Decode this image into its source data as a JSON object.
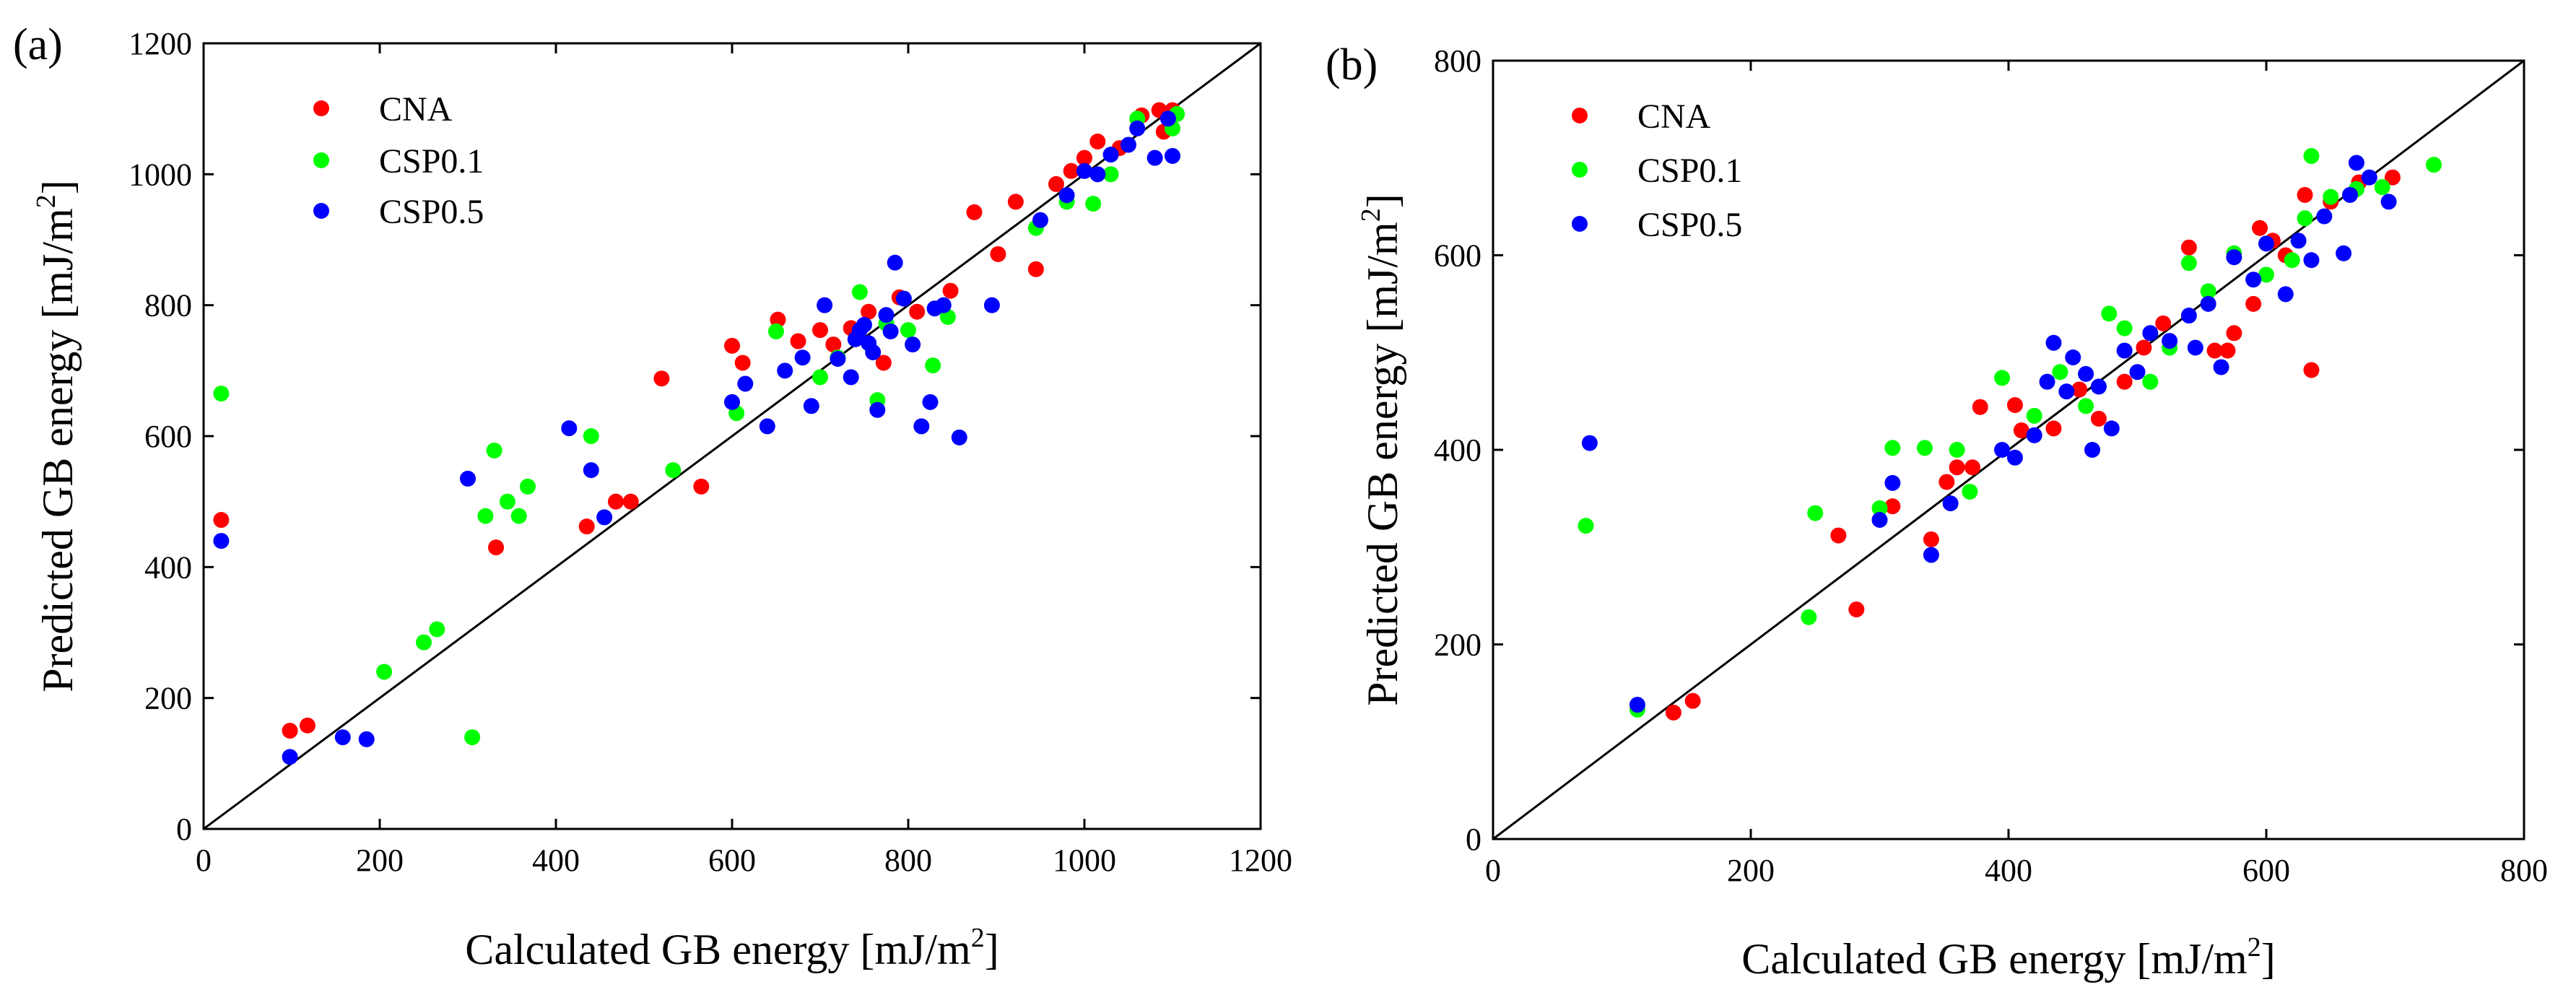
{
  "figure": {
    "panels": [
      {
        "letter": "(a)"
      },
      {
        "letter": "(b)"
      }
    ]
  },
  "colors": {
    "CNA": "#ff0000",
    "CSP0.1": "#00ff00",
    "CSP0.5": "#0000ff",
    "axis": "#000000"
  },
  "chart_data": [
    {
      "type": "scatter",
      "panel": "(a)",
      "xlabel_main": "Calculated GB energy [mJ/m",
      "xlabel_sup": "2",
      "xlabel_end": "]",
      "ylabel_main": "Predicted GB energy [mJ/m",
      "ylabel_sup": "2",
      "ylabel_end": "]",
      "xlim": [
        0,
        1200
      ],
      "ylim": [
        0,
        1200
      ],
      "xticks": [
        0,
        200,
        400,
        600,
        800,
        1000,
        1200
      ],
      "yticks": [
        0,
        200,
        400,
        600,
        800,
        1000,
        1200
      ],
      "xtick_labels": [
        "0",
        "200",
        "400",
        "600",
        "800",
        "1000",
        "1200"
      ],
      "ytick_labels": [
        "0",
        "200",
        "400",
        "600",
        "800",
        "1000",
        "1200"
      ],
      "reference_line": "y = x",
      "legend": [
        "CNA",
        "CSP0.1",
        "CSP0.5"
      ],
      "series": [
        {
          "name": "CNA",
          "points": [
            [
              20,
              472
            ],
            [
              98,
              150
            ],
            [
              118,
              158
            ],
            [
              332,
              430
            ],
            [
              435,
              462
            ],
            [
              468,
              500
            ],
            [
              485,
              500
            ],
            [
              520,
              688
            ],
            [
              565,
              523
            ],
            [
              600,
              738
            ],
            [
              612,
              712
            ],
            [
              652,
              778
            ],
            [
              675,
              745
            ],
            [
              700,
              762
            ],
            [
              715,
              740
            ],
            [
              735,
              765
            ],
            [
              755,
              790
            ],
            [
              772,
              712
            ],
            [
              790,
              812
            ],
            [
              810,
              790
            ],
            [
              848,
              822
            ],
            [
              875,
              942
            ],
            [
              902,
              878
            ],
            [
              922,
              958
            ],
            [
              945,
              855
            ],
            [
              968,
              985
            ],
            [
              985,
              1005
            ],
            [
              1000,
              1025
            ],
            [
              1015,
              1050
            ],
            [
              1040,
              1040
            ],
            [
              1065,
              1090
            ],
            [
              1085,
              1098
            ],
            [
              1100,
              1098
            ],
            [
              1090,
              1065
            ]
          ]
        },
        {
          "name": "CSP0.1",
          "points": [
            [
              20,
              665
            ],
            [
              205,
              240
            ],
            [
              250,
              285
            ],
            [
              265,
              305
            ],
            [
              305,
              140
            ],
            [
              320,
              478
            ],
            [
              330,
              578
            ],
            [
              345,
              500
            ],
            [
              358,
              478
            ],
            [
              368,
              523
            ],
            [
              440,
              600
            ],
            [
              533,
              548
            ],
            [
              605,
              635
            ],
            [
              650,
              760
            ],
            [
              700,
              690
            ],
            [
              720,
              720
            ],
            [
              745,
              820
            ],
            [
              765,
              655
            ],
            [
              775,
              772
            ],
            [
              800,
              762
            ],
            [
              828,
              708
            ],
            [
              845,
              782
            ],
            [
              945,
              918
            ],
            [
              980,
              958
            ],
            [
              1010,
              955
            ],
            [
              1030,
              1000
            ],
            [
              1060,
              1085
            ],
            [
              1100,
              1070
            ],
            [
              1105,
              1092
            ]
          ]
        },
        {
          "name": "CSP0.5",
          "points": [
            [
              20,
              440
            ],
            [
              98,
              110
            ],
            [
              158,
              140
            ],
            [
              185,
              137
            ],
            [
              300,
              535
            ],
            [
              415,
              612
            ],
            [
              440,
              548
            ],
            [
              455,
              476
            ],
            [
              600,
              652
            ],
            [
              615,
              680
            ],
            [
              640,
              615
            ],
            [
              660,
              700
            ],
            [
              680,
              720
            ],
            [
              690,
              646
            ],
            [
              705,
              800
            ],
            [
              720,
              718
            ],
            [
              735,
              690
            ],
            [
              740,
              748
            ],
            [
              745,
              762
            ],
            [
              750,
              770
            ],
            [
              755,
              742
            ],
            [
              760,
              728
            ],
            [
              765,
              640
            ],
            [
              775,
              785
            ],
            [
              780,
              760
            ],
            [
              785,
              865
            ],
            [
              795,
              810
            ],
            [
              805,
              740
            ],
            [
              815,
              615
            ],
            [
              825,
              652
            ],
            [
              830,
              795
            ],
            [
              840,
              800
            ],
            [
              858,
              598
            ],
            [
              895,
              800
            ],
            [
              950,
              930
            ],
            [
              980,
              968
            ],
            [
              1000,
              1005
            ],
            [
              1015,
              1000
            ],
            [
              1030,
              1030
            ],
            [
              1050,
              1045
            ],
            [
              1060,
              1070
            ],
            [
              1080,
              1025
            ],
            [
              1095,
              1085
            ],
            [
              1100,
              1028
            ]
          ]
        }
      ]
    },
    {
      "type": "scatter",
      "panel": "(b)",
      "xlabel_main": "Calculated GB energy [mJ/m",
      "xlabel_sup": "2",
      "xlabel_end": "]",
      "ylabel_main": "Predicted GB energy [mJ/m",
      "ylabel_sup": "2",
      "ylabel_end": "]",
      "xlim": [
        0,
        800
      ],
      "ylim": [
        0,
        800
      ],
      "xticks": [
        0,
        200,
        400,
        600,
        800
      ],
      "yticks": [
        0,
        200,
        400,
        600,
        800
      ],
      "xtick_labels": [
        "0",
        "200",
        "400",
        "600",
        "800"
      ],
      "ytick_labels": [
        "0",
        "200",
        "400",
        "600",
        "800"
      ],
      "reference_line": "y = x",
      "legend": [
        "CNA",
        "CSP0.1",
        "CSP0.5"
      ],
      "series": [
        {
          "name": "CNA",
          "points": [
            [
              140,
              130
            ],
            [
              155,
              142
            ],
            [
              268,
              312
            ],
            [
              282,
              236
            ],
            [
              310,
              342
            ],
            [
              340,
              308
            ],
            [
              352,
              367
            ],
            [
              360,
              382
            ],
            [
              372,
              382
            ],
            [
              378,
              444
            ],
            [
              405,
              446
            ],
            [
              410,
              420
            ],
            [
              435,
              422
            ],
            [
              455,
              462
            ],
            [
              470,
              432
            ],
            [
              490,
              470
            ],
            [
              505,
              505
            ],
            [
              520,
              530
            ],
            [
              540,
              608
            ],
            [
              560,
              502
            ],
            [
              570,
              502
            ],
            [
              575,
              520
            ],
            [
              590,
              550
            ],
            [
              595,
              628
            ],
            [
              605,
              615
            ],
            [
              615,
              600
            ],
            [
              630,
              662
            ],
            [
              635,
              482
            ],
            [
              650,
              655
            ],
            [
              672,
              675
            ],
            [
              698,
              680
            ]
          ]
        },
        {
          "name": "CSP0.1",
          "points": [
            [
              72,
              322
            ],
            [
              112,
              133
            ],
            [
              245,
              228
            ],
            [
              250,
              335
            ],
            [
              300,
              340
            ],
            [
              310,
              402
            ],
            [
              335,
              402
            ],
            [
              360,
              400
            ],
            [
              370,
              357
            ],
            [
              395,
              474
            ],
            [
              420,
              435
            ],
            [
              440,
              480
            ],
            [
              460,
              445
            ],
            [
              478,
              540
            ],
            [
              490,
              525
            ],
            [
              510,
              470
            ],
            [
              525,
              505
            ],
            [
              540,
              592
            ],
            [
              555,
              563
            ],
            [
              575,
              602
            ],
            [
              600,
              580
            ],
            [
              620,
              595
            ],
            [
              630,
              638
            ],
            [
              635,
              702
            ],
            [
              650,
              660
            ],
            [
              670,
              668
            ],
            [
              690,
              670
            ],
            [
              730,
              693
            ]
          ]
        },
        {
          "name": "CSP0.5",
          "points": [
            [
              75,
              407
            ],
            [
              112,
              138
            ],
            [
              300,
              328
            ],
            [
              310,
              366
            ],
            [
              340,
              292
            ],
            [
              355,
              345
            ],
            [
              395,
              400
            ],
            [
              405,
              392
            ],
            [
              420,
              415
            ],
            [
              430,
              470
            ],
            [
              435,
              510
            ],
            [
              445,
              460
            ],
            [
              450,
              495
            ],
            [
              460,
              478
            ],
            [
              465,
              400
            ],
            [
              470,
              465
            ],
            [
              480,
              422
            ],
            [
              490,
              502
            ],
            [
              500,
              480
            ],
            [
              510,
              520
            ],
            [
              525,
              512
            ],
            [
              540,
              538
            ],
            [
              545,
              505
            ],
            [
              555,
              550
            ],
            [
              565,
              485
            ],
            [
              575,
              598
            ],
            [
              590,
              575
            ],
            [
              600,
              612
            ],
            [
              615,
              560
            ],
            [
              625,
              615
            ],
            [
              635,
              595
            ],
            [
              645,
              640
            ],
            [
              660,
              602
            ],
            [
              665,
              662
            ],
            [
              670,
              695
            ],
            [
              680,
              680
            ],
            [
              695,
              655
            ]
          ]
        }
      ]
    }
  ]
}
